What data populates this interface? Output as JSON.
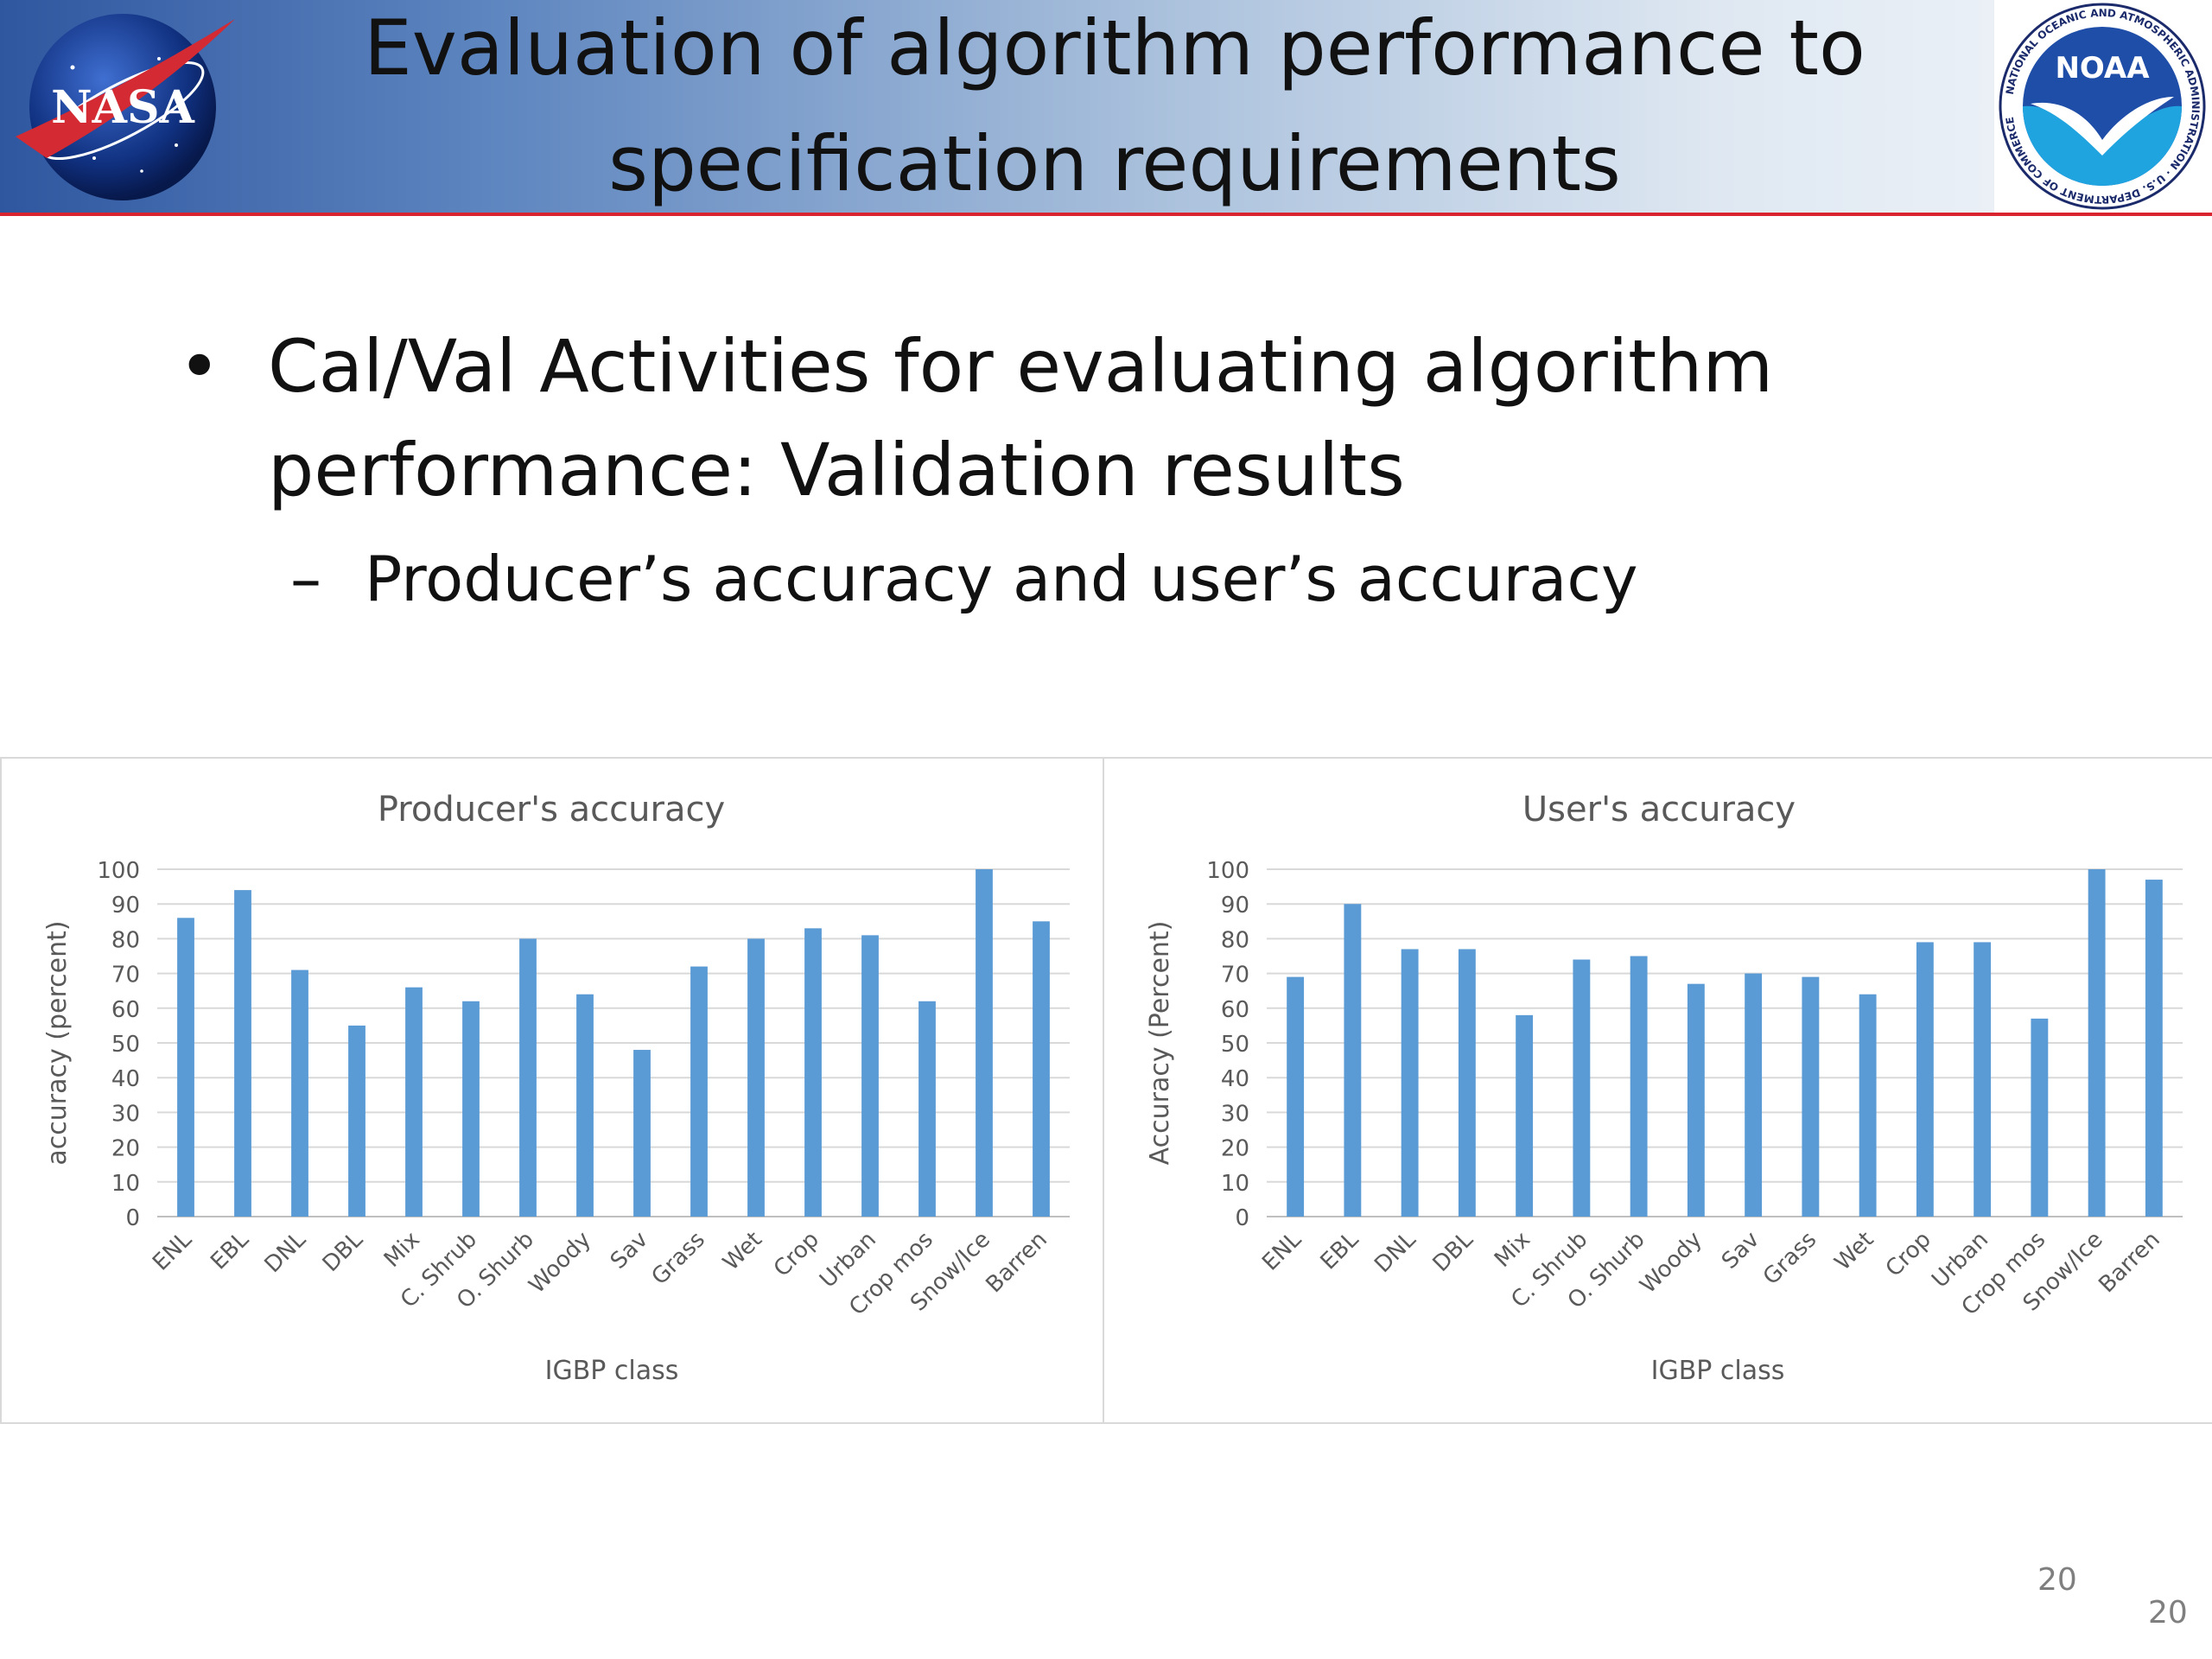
{
  "header": {
    "title": "Evaluation of algorithm performance to specification requirements",
    "nasa_logo_text": "NASA",
    "noaa_logo_text": "NOAA",
    "noaa_ring_text": "NATIONAL OCEANIC AND ATMOSPHERIC ADMINISTRATION · U.S. DEPARTMENT OF COMMERCE",
    "colors": {
      "band_start": "#2f57a0",
      "band_end": "#f3f6fa",
      "rule": "#d9232f"
    }
  },
  "bullets": {
    "main_marker": "•",
    "main": "Cal/Val Activities for evaluating algorithm performance: Validation results",
    "sub_marker": "–",
    "sub": "Producer’s accuracy and user’s accuracy"
  },
  "chart_data": [
    {
      "type": "bar",
      "title": "Producer's accuracy",
      "xlabel": "IGBP class",
      "ylabel": "accuracy (percent)",
      "categories": [
        "ENL",
        "EBL",
        "DNL",
        "DBL",
        "Mix",
        "C. Shrub",
        "O. Shurb",
        "Woody",
        "Sav",
        "Grass",
        "Wet",
        "Crop",
        "Urban",
        "Crop mos",
        "Snow/Ice",
        "Barren"
      ],
      "values": [
        86,
        94,
        71,
        55,
        66,
        62,
        80,
        64,
        48,
        72,
        80,
        83,
        81,
        62,
        100,
        85
      ],
      "ylim": [
        0,
        100
      ],
      "yticks": [
        0,
        10,
        20,
        30,
        40,
        50,
        60,
        70,
        80,
        90,
        100
      ],
      "grid": true,
      "bar_color": "#5b9bd5"
    },
    {
      "type": "bar",
      "title": "User's accuracy",
      "xlabel": "IGBP class",
      "ylabel": "Accuracy (Percent)",
      "categories": [
        "ENL",
        "EBL",
        "DNL",
        "DBL",
        "Mix",
        "C. Shrub",
        "O. Shurb",
        "Woody",
        "Sav",
        "Grass",
        "Wet",
        "Crop",
        "Urban",
        "Crop mos",
        "Snow/Ice",
        "Barren"
      ],
      "values": [
        69,
        90,
        77,
        77,
        58,
        74,
        75,
        67,
        70,
        69,
        64,
        79,
        79,
        57,
        100,
        97
      ],
      "ylim": [
        0,
        100
      ],
      "yticks": [
        0,
        10,
        20,
        30,
        40,
        50,
        60,
        70,
        80,
        90,
        100
      ],
      "grid": true,
      "bar_color": "#5b9bd5"
    }
  ],
  "footer": {
    "page_number": "20",
    "page_number_2": "20"
  }
}
